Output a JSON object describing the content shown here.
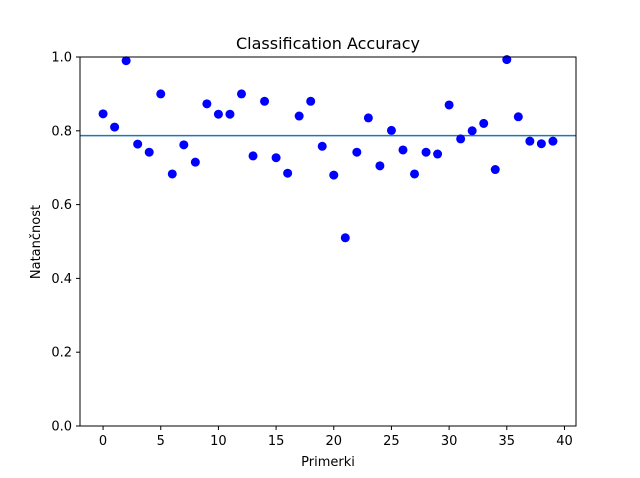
{
  "chart_data": {
    "type": "scatter",
    "title": "Classification Accuracy",
    "xlabel": "Primerki",
    "ylabel": "Natančnost",
    "xlim": [
      -2,
      41
    ],
    "ylim": [
      0.0,
      1.0
    ],
    "xticks": [
      0,
      5,
      10,
      15,
      20,
      25,
      30,
      35,
      40
    ],
    "yticks": [
      0.0,
      0.2,
      0.4,
      0.6,
      0.8,
      1.0
    ],
    "xtick_labels": [
      "0",
      "5",
      "10",
      "15",
      "20",
      "25",
      "30",
      "35",
      "40"
    ],
    "ytick_labels": [
      "0.0",
      "0.2",
      "0.4",
      "0.6",
      "0.8",
      "1.0"
    ],
    "grid": false,
    "series": [
      {
        "color": "#0000ff",
        "marker": "circle",
        "x": [
          0,
          1,
          2,
          3,
          4,
          5,
          6,
          7,
          8,
          9,
          10,
          11,
          12,
          13,
          14,
          15,
          16,
          17,
          18,
          19,
          20,
          21,
          22,
          23,
          24,
          25,
          26,
          27,
          28,
          29,
          30,
          31,
          32,
          33,
          34,
          35,
          36,
          37,
          38,
          39
        ],
        "y": [
          0.846,
          0.81,
          0.99,
          0.764,
          0.742,
          0.9,
          0.683,
          0.762,
          0.715,
          0.873,
          0.845,
          0.845,
          0.9,
          0.732,
          0.88,
          0.727,
          0.685,
          0.84,
          0.88,
          0.758,
          0.68,
          0.51,
          0.742,
          0.835,
          0.705,
          0.801,
          0.748,
          0.683,
          0.742,
          0.737,
          0.87,
          0.778,
          0.8,
          0.82,
          0.695,
          0.993,
          0.838,
          0.772,
          0.765,
          0.772
        ]
      }
    ],
    "reference_line": {
      "orientation": "horizontal",
      "y": 0.787,
      "color": "#1f77b4"
    }
  }
}
